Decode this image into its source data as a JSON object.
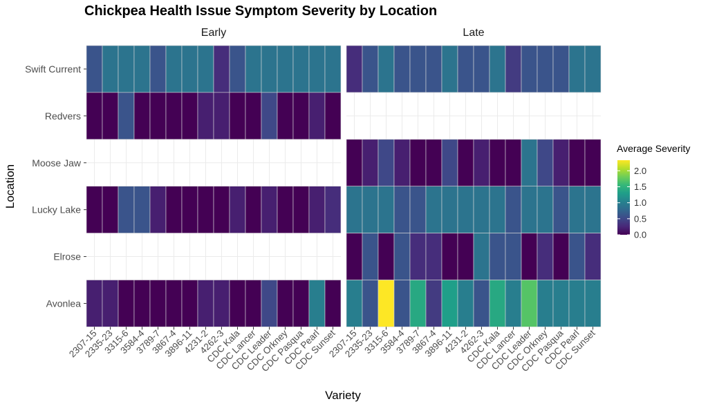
{
  "chart_data": {
    "type": "heatmap",
    "title": "Chickpea Health Issue Symptom Severity by Location",
    "xlabel": "Variety",
    "ylabel": "Location",
    "facets": [
      "Early",
      "Late"
    ],
    "varieties": [
      "2307-15",
      "2335-23",
      "3315-6",
      "3584-4",
      "3789-7",
      "3867-4",
      "3896-11",
      "4231-2",
      "4262-3",
      "CDC Kala",
      "CDC Lancer",
      "CDC Leader",
      "CDC Orkney",
      "CDC Pasqua",
      "CDC Pearl",
      "CDC Sunset"
    ],
    "locations": [
      "Swift Current",
      "Redvers",
      "Moose Jaw",
      "Lucky Lake",
      "Elrose",
      "Avonlea"
    ],
    "legend": {
      "title": "Average Severity",
      "position": "right",
      "min": 0,
      "max": 2.33,
      "ticks": [
        "0.0",
        "0.5",
        "1.0",
        "1.5",
        "2.0"
      ],
      "tick_values": [
        0,
        0.5,
        1.0,
        1.5,
        2.0
      ],
      "palette": [
        "#440154",
        "#482878",
        "#3e4a89",
        "#31688e",
        "#26828e",
        "#1f9e89",
        "#35b779",
        "#6ece58",
        "#b5de2b",
        "#fde725"
      ]
    },
    "values": {
      "Early": {
        "Swift Current": [
          0.6,
          0.9,
          0.9,
          0.9,
          0.6,
          0.9,
          0.9,
          0.9,
          0.3,
          0.6,
          0.9,
          0.9,
          0.9,
          0.9,
          0.9,
          0.9
        ],
        "Redvers": [
          0.0,
          0.0,
          0.6,
          0.0,
          0.0,
          0.0,
          0.0,
          0.2,
          0.2,
          0.0,
          0.0,
          0.5,
          0.0,
          0.0,
          0.2,
          0.0
        ],
        "Moose Jaw": null,
        "Lucky Lake": [
          0.0,
          0.0,
          0.6,
          0.6,
          0.2,
          0.0,
          0.0,
          0.0,
          0.0,
          0.2,
          0.0,
          0.2,
          0.0,
          0.0,
          0.2,
          0.3
        ],
        "Elrose": null,
        "Avonlea": [
          0.2,
          0.2,
          0.0,
          0.0,
          0.0,
          0.0,
          0.0,
          0.2,
          0.2,
          0.0,
          0.0,
          0.5,
          0.0,
          0.0,
          1.0,
          0.0
        ]
      },
      "Late": {
        "Swift Current": [
          0.3,
          0.6,
          0.9,
          0.6,
          0.6,
          0.6,
          0.9,
          0.6,
          0.6,
          0.9,
          0.4,
          0.6,
          0.6,
          0.6,
          0.9,
          0.9
        ],
        "Redvers": null,
        "Moose Jaw": [
          0.0,
          0.2,
          0.5,
          0.2,
          0.0,
          0.0,
          0.5,
          0.0,
          0.2,
          0.0,
          0.0,
          0.9,
          0.5,
          0.2,
          0.0,
          0.0
        ],
        "Lucky Lake": [
          0.9,
          0.9,
          0.9,
          0.6,
          0.6,
          0.9,
          0.9,
          0.9,
          0.9,
          0.9,
          0.6,
          0.9,
          0.9,
          0.6,
          0.9,
          0.9
        ],
        "Elrose": [
          0.0,
          0.6,
          0.0,
          0.6,
          0.3,
          0.3,
          0.0,
          0.0,
          0.9,
          0.6,
          0.6,
          0.0,
          0.3,
          0.0,
          0.6,
          0.3
        ],
        "Avonlea": [
          1.0,
          0.6,
          2.33,
          0.6,
          1.4,
          0.4,
          1.3,
          1.0,
          0.6,
          1.4,
          1.0,
          1.7,
          1.0,
          1.0,
          1.0,
          1.0
        ]
      }
    }
  }
}
